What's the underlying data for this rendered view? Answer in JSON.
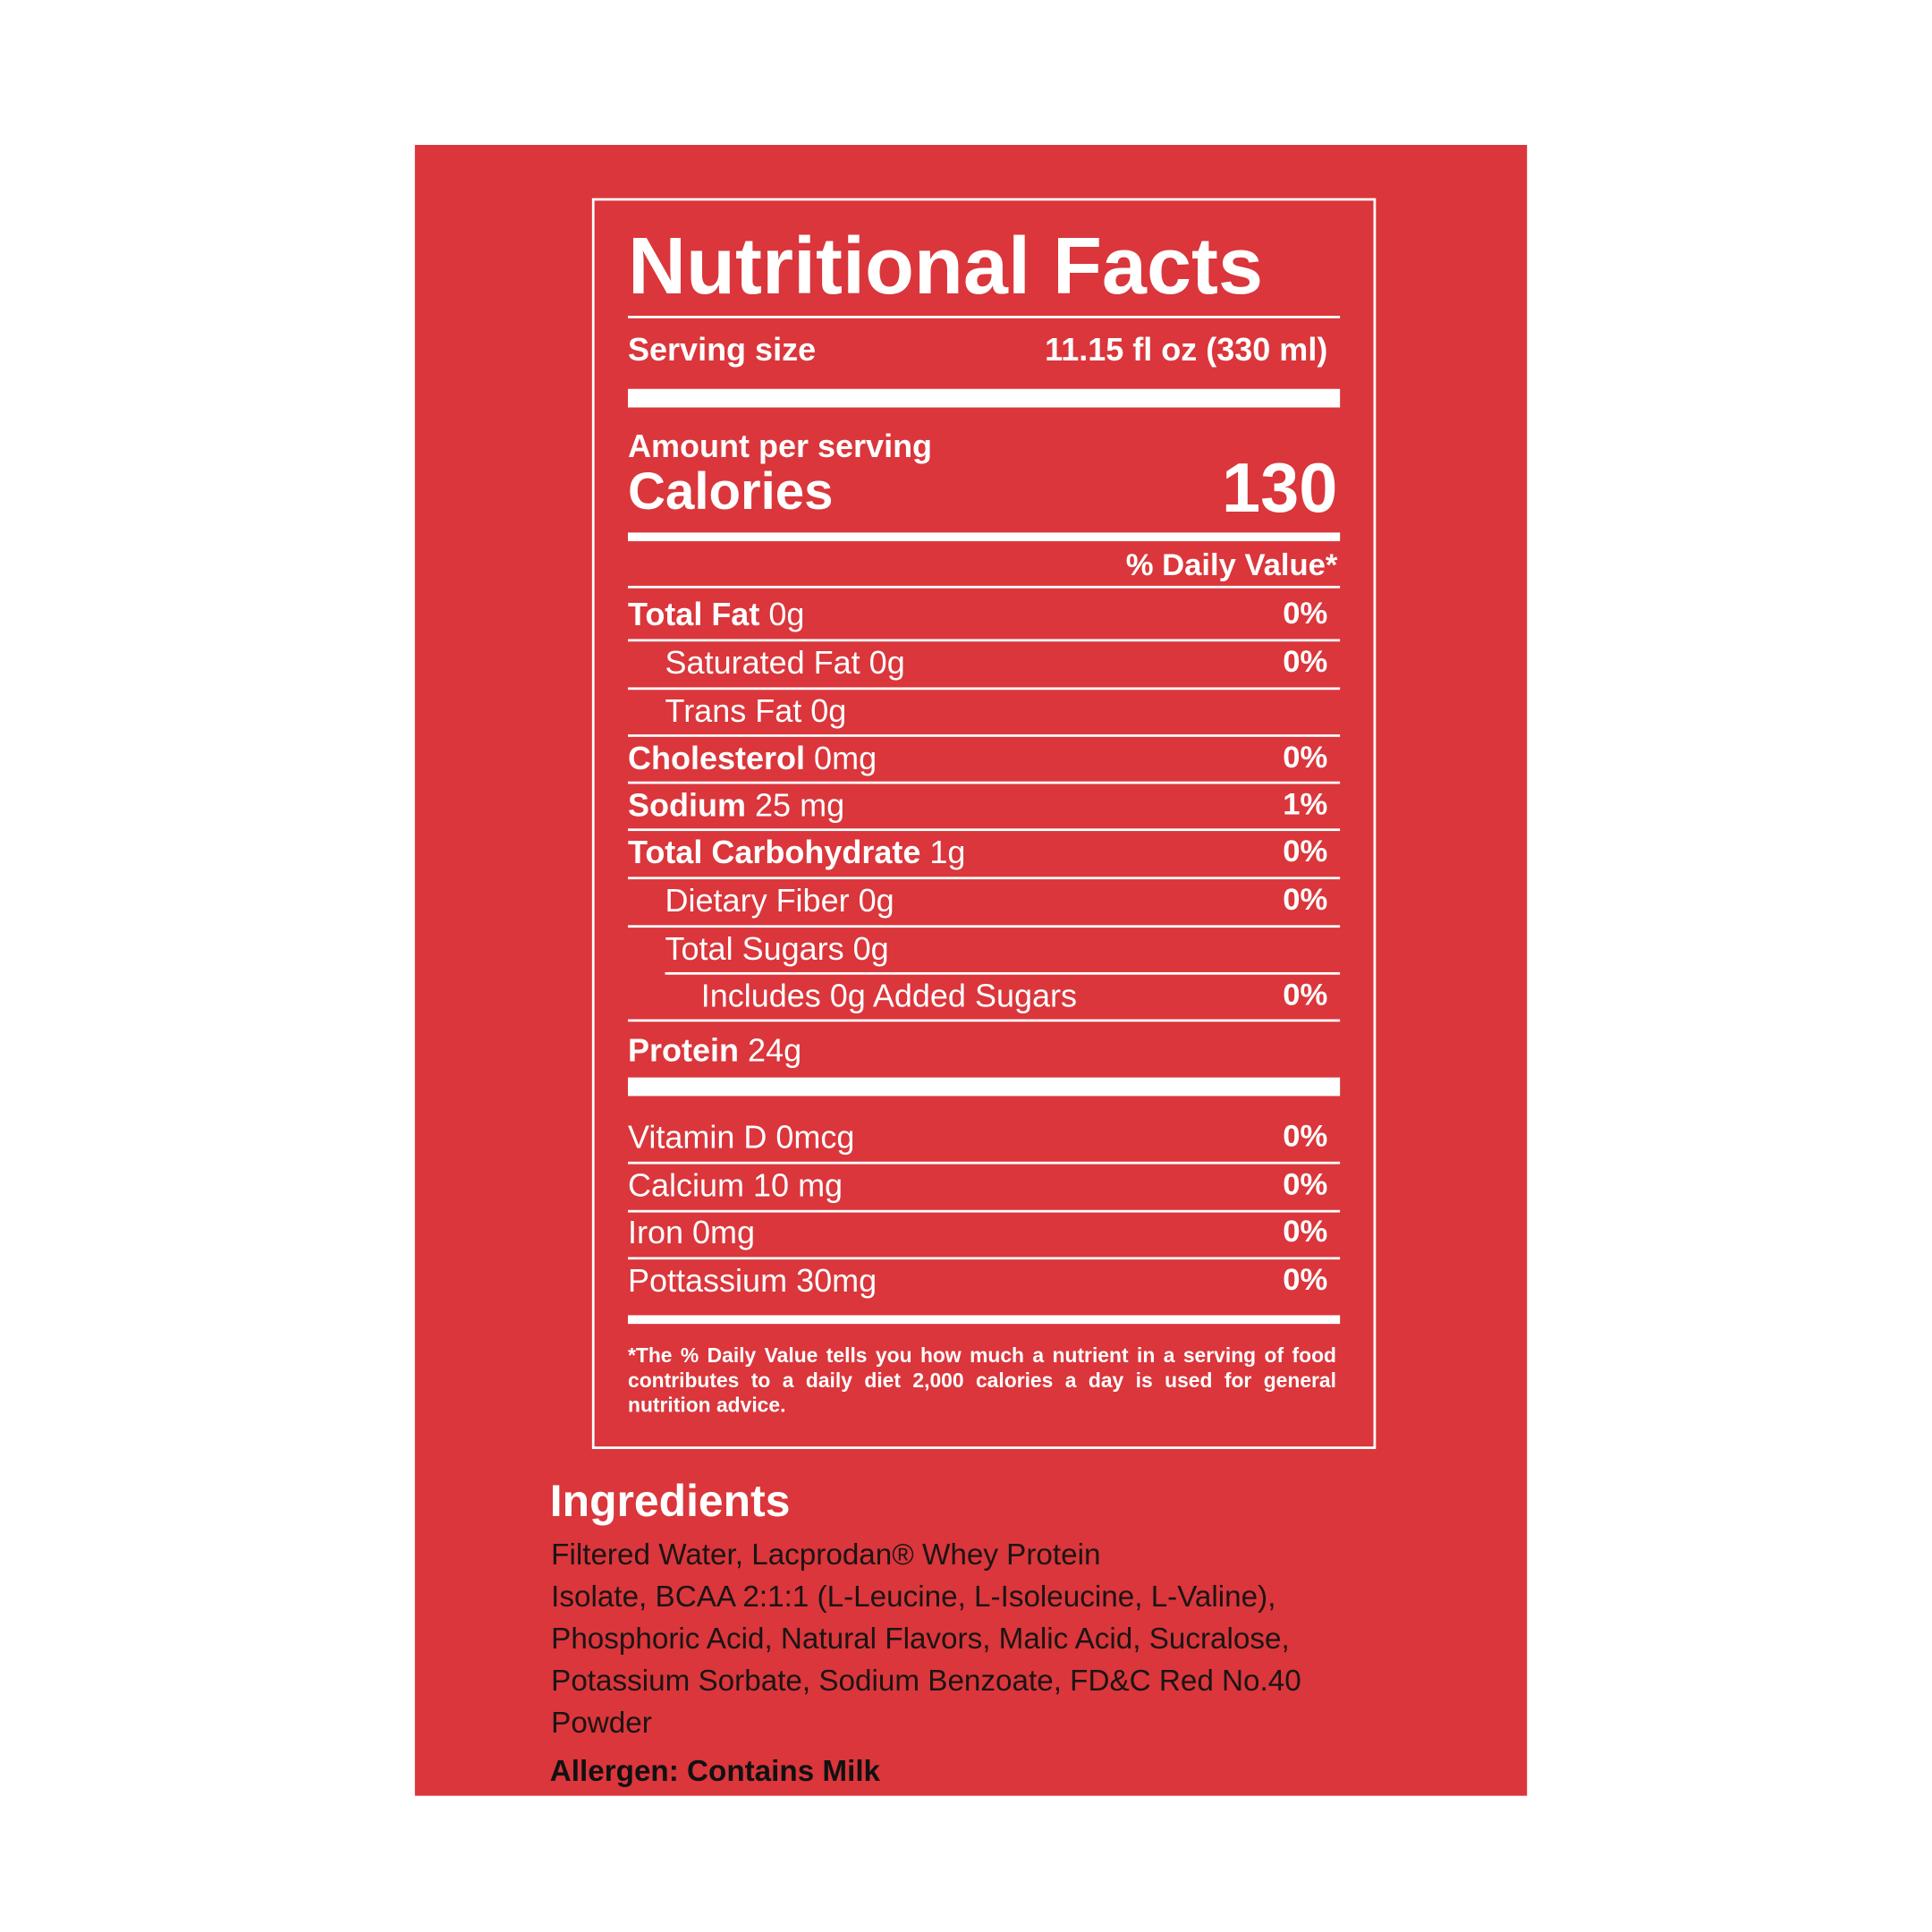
{
  "colors": {
    "background": "#DA363B",
    "text": "#FFFFFF",
    "ingredients_text": "#1C1414"
  },
  "label": {
    "title": "Nutritional Facts",
    "serving_size_label": "Serving size",
    "serving_size_value": "11.15 fl oz (330 ml)",
    "amount_per_serving": "Amount per serving",
    "calories_label": "Calories",
    "calories_value": "130",
    "daily_value_header": "% Daily Value*",
    "nutrients": [
      {
        "name": "Total Fat",
        "amount": "0g",
        "dv": "0%"
      },
      {
        "name": "Saturated Fat 0g",
        "amount": "",
        "dv": "0%"
      },
      {
        "name": "Trans Fat 0g",
        "amount": "",
        "dv": ""
      },
      {
        "name": "Cholesterol",
        "amount": "0mg",
        "dv": "0%"
      },
      {
        "name": "Sodium",
        "amount": "25 mg",
        "dv": "1%"
      },
      {
        "name": "Total Carbohydrate",
        "amount": "1g",
        "dv": "0%"
      },
      {
        "name": "Dietary Fiber 0g",
        "amount": "",
        "dv": "0%"
      },
      {
        "name": "Total Sugars 0g",
        "amount": "",
        "dv": ""
      },
      {
        "name": "Includes 0g Added Sugars",
        "amount": "",
        "dv": "0%"
      },
      {
        "name": "Protein",
        "amount": "24g",
        "dv": ""
      }
    ],
    "vitamins": [
      {
        "name": "Vitamin D 0mcg",
        "dv": "0%"
      },
      {
        "name": "Calcium 10 mg",
        "dv": "0%"
      },
      {
        "name": "Iron 0mg",
        "dv": "0%"
      },
      {
        "name": "Pottassium 30mg",
        "dv": "0%"
      }
    ],
    "footnote": "*The % Daily Value tells you how much a nutrient in a serving of food contributes to a daily diet 2,000 calories a day is used for general nutrition advice."
  },
  "ingredients": {
    "heading": "Ingredients",
    "lines": [
      "Filtered Water, Lacprodan® Whey Protein",
      "Isolate, BCAA 2:1:1 (L-Leucine, L-Isoleucine, L-Valine),",
      "Phosphoric Acid, Natural Flavors, Malic Acid, Sucralose,",
      "Potassium Sorbate, Sodium Benzoate, FD&C Red No.40",
      "Powder"
    ],
    "allergen": "Allergen: Contains Milk"
  }
}
